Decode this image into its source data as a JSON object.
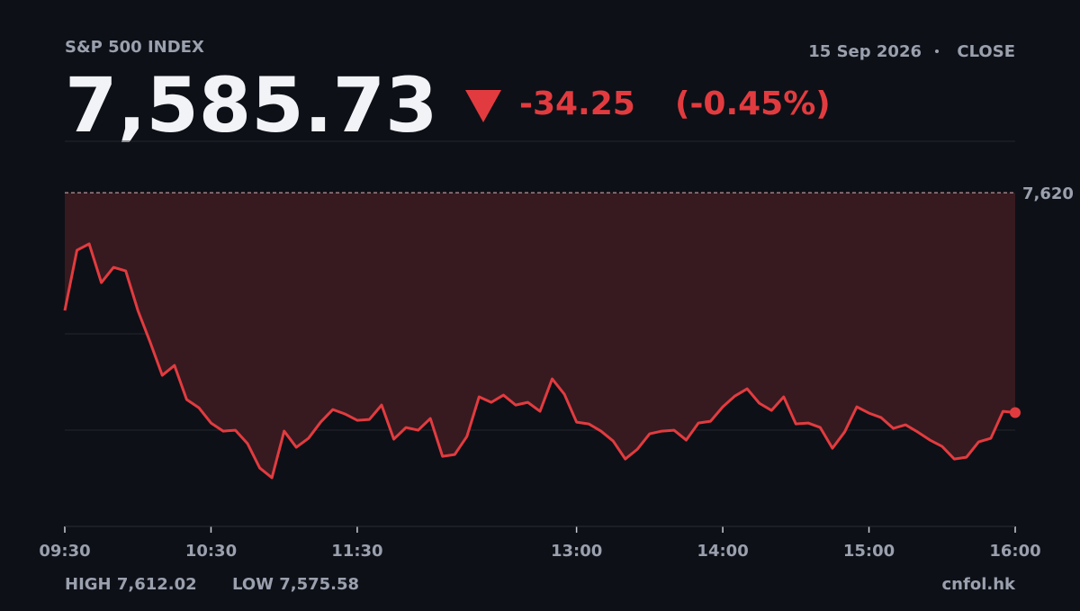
{
  "header": {
    "title": "S&P 500 INDEX",
    "price": "7,585.73",
    "change": "-34.25",
    "change_pct": "(-0.45%)",
    "date": "15 Sep 2026",
    "session": "CLOSE",
    "high": "HIGH 7,612.02",
    "low": "LOW 7,575.58",
    "source": "cnfol.hk"
  },
  "chart_data": {
    "type": "line",
    "x": [
      570,
      575,
      580,
      585,
      590,
      595,
      600,
      605,
      610,
      615,
      620,
      625,
      630,
      635,
      640,
      645,
      650,
      655,
      660,
      665,
      670,
      675,
      680,
      685,
      690,
      695,
      700,
      705,
      710,
      715,
      720,
      725,
      730,
      735,
      740,
      745,
      750,
      755,
      760,
      765,
      770,
      775,
      780,
      785,
      790,
      795,
      800,
      805,
      810,
      815,
      820,
      825,
      830,
      835,
      840,
      845,
      850,
      855,
      860,
      865,
      870,
      875,
      880,
      885,
      890,
      895,
      900,
      905,
      910,
      915,
      920,
      925,
      930,
      935,
      940,
      945,
      950,
      955,
      960
    ],
    "series": [
      {
        "name": "S&P 500",
        "color": "#e23b3f",
        "values": [
          7601.63,
          7611.03,
          7612.02,
          7605.98,
          7608.36,
          7607.8,
          7601.63,
          7596.73,
          7591.54,
          7593.08,
          7587.76,
          7586.49,
          7584.11,
          7582.85,
          7582.99,
          7580.89,
          7577.1,
          7575.58,
          7582.85,
          7580.33,
          7581.73,
          7584.25,
          7586.21,
          7585.51,
          7584.53,
          7584.67,
          7586.91,
          7581.59,
          7583.41,
          7582.99,
          7584.81,
          7578.92,
          7579.2,
          7582.01,
          7588.18,
          7587.33,
          7588.46,
          7586.91,
          7587.33,
          7585.93,
          7590.98,
          7588.6,
          7584.25,
          7583.97,
          7582.85,
          7581.31,
          7578.5,
          7580.04,
          7582.43,
          7582.85,
          7582.99,
          7581.45,
          7584.11,
          7584.39,
          7586.63,
          7588.32,
          7589.44,
          7587.19,
          7586.07,
          7588.18,
          7583.97,
          7584.11,
          7583.41,
          7580.18,
          7582.71,
          7586.63,
          7585.65,
          7584.95,
          7583.27,
          7583.83,
          7582.71,
          7581.45,
          7580.47,
          7578.5,
          7578.78,
          7581.17,
          7581.73,
          7585.93,
          7585.73
        ]
      }
    ],
    "xlim": [
      570,
      960
    ],
    "xticks": [
      {
        "value": 570,
        "label": "09:30"
      },
      {
        "value": 630,
        "label": "10:30"
      },
      {
        "value": 690,
        "label": "11:30"
      },
      {
        "value": 780,
        "label": "13:00"
      },
      {
        "value": 840,
        "label": "14:00"
      },
      {
        "value": 900,
        "label": "15:00"
      },
      {
        "value": 960,
        "label": "16:00"
      }
    ],
    "ylim": [
      7568,
      7628
    ],
    "reference_line": {
      "value": 7619.98,
      "label": "7,620"
    },
    "grid": true
  }
}
